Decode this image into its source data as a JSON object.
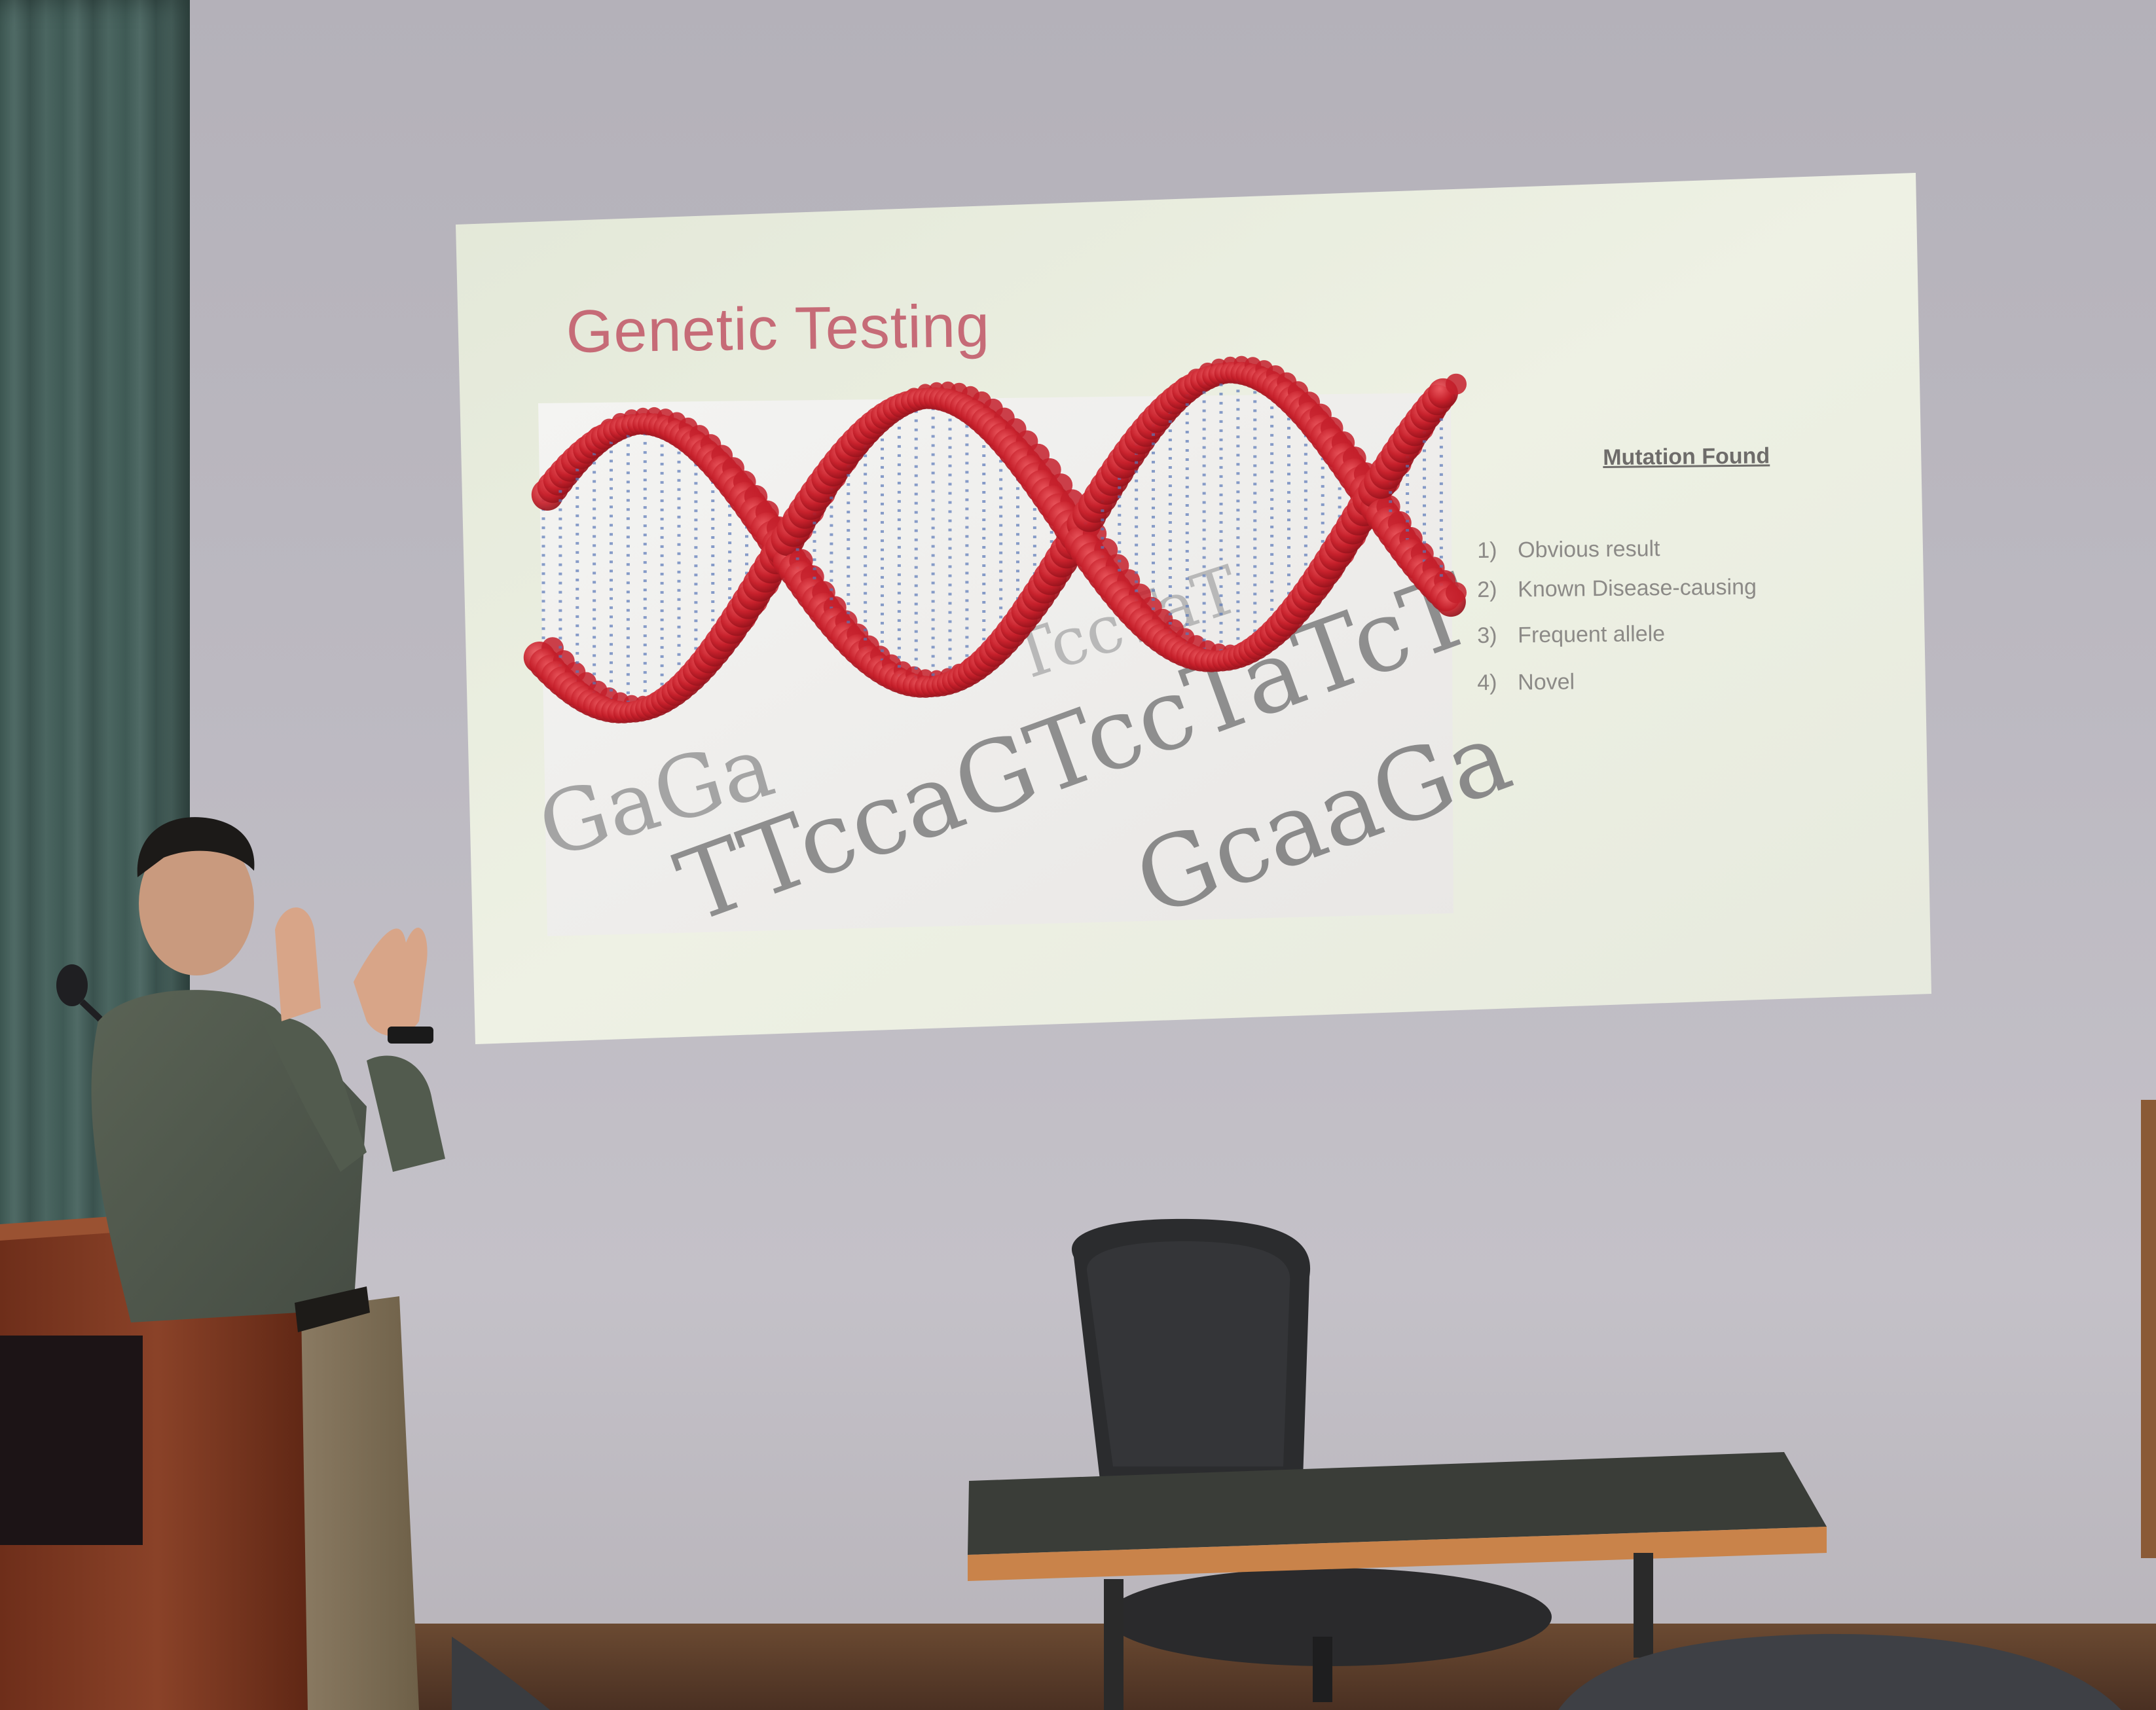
{
  "slide": {
    "title": "Genetic Testing",
    "dna_letters": [
      "TTccaGTccTaTcT",
      "GaGa",
      "GcaaGa",
      "TccTaT"
    ],
    "side_panel": {
      "heading": "Mutation Found",
      "items": [
        {
          "number": "1)",
          "label": "Obvious result"
        },
        {
          "number": "2)",
          "label": "Known Disease-causing"
        },
        {
          "number": "3)",
          "label": "Frequent allele"
        },
        {
          "number": "4)",
          "label": "Novel"
        }
      ]
    }
  },
  "colors": {
    "slide_background": "#e8ecde",
    "title_color": "#c66b77",
    "dna_red": "#c4202c",
    "dna_blue": "#5a78b8",
    "wall": "#bcb9c1",
    "curtain": "#466160",
    "podium": "#7a3a22"
  },
  "scene": {
    "objects": [
      "presenter",
      "podium-with-microphone",
      "office-chair",
      "table",
      "audience-chairs"
    ]
  }
}
